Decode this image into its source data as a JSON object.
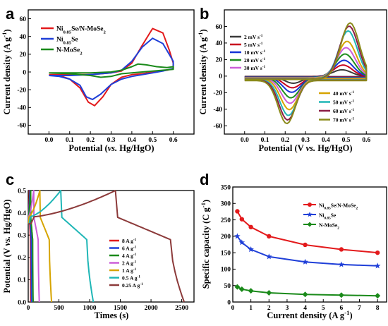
{
  "chart_data": [
    {
      "panel": "a",
      "type": "line",
      "xlabel": "Potential (vs. Hg/HgO)",
      "ylabel": "Current density (A g-1)",
      "xlim": [
        -0.1,
        0.7
      ],
      "ylim": [
        -70,
        70
      ],
      "xticks": [
        "0.0",
        "0.1",
        "0.2",
        "0.3",
        "0.4",
        "0.5",
        "0.6"
      ],
      "yticks": [
        "-60",
        "-40",
        "-20",
        "0",
        "20",
        "40",
        "60"
      ],
      "legend_position": "top-left",
      "series": [
        {
          "name": "Ni0.85Se/N-MoSe2",
          "color": "#e31a1c",
          "x": [
            0.0,
            0.1,
            0.2,
            0.3,
            0.35,
            0.4,
            0.45,
            0.5,
            0.55,
            0.58,
            0.6,
            0.6,
            0.57,
            0.5,
            0.45,
            0.4,
            0.35,
            0.3,
            0.26,
            0.22,
            0.19,
            0.15,
            0.1,
            0.05,
            0.0
          ],
          "y": [
            -3,
            -3,
            -3,
            -1,
            1,
            10,
            30,
            49,
            44,
            25,
            10,
            4,
            2,
            0,
            -2,
            -3,
            -6,
            -14,
            -28,
            -38,
            -34,
            -18,
            -8,
            -4,
            -3
          ]
        },
        {
          "name": "Ni0.85Se",
          "color": "#1f3fd8",
          "x": [
            0.0,
            0.1,
            0.2,
            0.3,
            0.35,
            0.4,
            0.45,
            0.5,
            0.55,
            0.58,
            0.6,
            0.6,
            0.55,
            0.5,
            0.45,
            0.4,
            0.35,
            0.3,
            0.25,
            0.21,
            0.18,
            0.15,
            0.1,
            0.05,
            0.0
          ],
          "y": [
            -4,
            -4,
            -3,
            -1,
            2,
            12,
            28,
            38,
            32,
            20,
            12,
            4,
            1,
            -1,
            -3,
            -5,
            -8,
            -14,
            -25,
            -31,
            -28,
            -15,
            -8,
            -5,
            -4
          ]
        },
        {
          "name": "N-MoSe2",
          "color": "#1a8a1a",
          "x": [
            0.0,
            0.1,
            0.2,
            0.3,
            0.35,
            0.4,
            0.43,
            0.47,
            0.52,
            0.57,
            0.6,
            0.6,
            0.55,
            0.5,
            0.45,
            0.4,
            0.35,
            0.3,
            0.25,
            0.2,
            0.1,
            0.0
          ],
          "y": [
            -1,
            -1,
            -1,
            0,
            2,
            6,
            9,
            8,
            6,
            5,
            6,
            3,
            2,
            1,
            0,
            -1,
            -2,
            -5,
            -6,
            -4,
            -2,
            -1
          ]
        }
      ]
    },
    {
      "panel": "b",
      "type": "line",
      "xlabel": "Potential (V vs. Hg/HgO)",
      "ylabel": "Current density (A g-1)",
      "xlim": [
        -0.1,
        0.7
      ],
      "ylim": [
        -70,
        80
      ],
      "xticks": [
        "0.0",
        "0.1",
        "0.2",
        "0.3",
        "0.4",
        "0.5",
        "0.6"
      ],
      "yticks": [
        "-60",
        "-40",
        "-20",
        "0",
        "20",
        "40",
        "60"
      ],
      "legend_position": "top-left and bottom-right",
      "series": [
        {
          "name": "2 mV s-1",
          "color": "#3a3a3a",
          "peak_anodic": 8,
          "peak_cathodic": -8
        },
        {
          "name": "5 mV s-1",
          "color": "#c8001e",
          "peak_anodic": 14,
          "peak_cathodic": -13
        },
        {
          "name": "10 mV s-1",
          "color": "#1533d6",
          "peak_anodic": 20,
          "peak_cathodic": -18
        },
        {
          "name": "20 mV s-1",
          "color": "#1e8c1e",
          "peak_anodic": 28,
          "peak_cathodic": -24
        },
        {
          "name": "30 mV s-1",
          "color": "#cc5fd8",
          "peak_anodic": 36,
          "peak_cathodic": -30
        },
        {
          "name": "40 mV s-1",
          "color": "#d6a400",
          "peak_anodic": 44,
          "peak_cathodic": -37
        },
        {
          "name": "50 mV s-1",
          "color": "#1fb6b6",
          "peak_anodic": 57,
          "peak_cathodic": -43
        },
        {
          "name": "60 mV s-1",
          "color": "#8c1e46",
          "peak_anodic": 63,
          "peak_cathodic": -48
        },
        {
          "name": "70 mV s-1",
          "color": "#8a8a1a",
          "peak_anodic": 67,
          "peak_cathodic": -52
        }
      ]
    },
    {
      "panel": "c",
      "type": "line",
      "xlabel": "Times (s)",
      "ylabel": "Potential (V vs. Hg/HgO)",
      "xlim": [
        0,
        2700
      ],
      "ylim": [
        0.0,
        0.5
      ],
      "xticks": [
        "0",
        "500",
        "1000",
        "1500",
        "2000",
        "2500"
      ],
      "yticks": [
        "0.0",
        "0.1",
        "0.2",
        "0.3",
        "0.4",
        "0.5"
      ],
      "legend_position": "right",
      "series": [
        {
          "name": "8 A g-1",
          "color": "#e31a1c",
          "t_charge": 20,
          "t_total": 40
        },
        {
          "name": "6 A g-1",
          "color": "#1f3fd8",
          "t_charge": 28,
          "t_total": 55
        },
        {
          "name": "4 A g-1",
          "color": "#1a8a1a",
          "t_charge": 40,
          "t_total": 80
        },
        {
          "name": "2 A g-1",
          "color": "#cc5fd8",
          "t_charge": 90,
          "t_total": 180
        },
        {
          "name": "1 A g-1",
          "color": "#d6a400",
          "t_charge": 190,
          "t_total": 380
        },
        {
          "name": "0.5 A g-1",
          "color": "#1fb6b6",
          "t_charge": 530,
          "t_total": 1060
        },
        {
          "name": "0.25 A g-1",
          "color": "#8c3a3a",
          "t_charge": 1420,
          "t_total": 2540
        }
      ]
    },
    {
      "panel": "d",
      "type": "line",
      "xlabel": "Current density (A g-1)",
      "ylabel": "Specific capacity (C g-1)",
      "xlim": [
        0,
        8.5
      ],
      "ylim": [
        0,
        350
      ],
      "xticks": [
        "0",
        "1",
        "2",
        "3",
        "4",
        "5",
        "6",
        "7",
        "8"
      ],
      "yticks": [
        "0",
        "50",
        "100",
        "150",
        "200",
        "250",
        "300",
        "350"
      ],
      "x": [
        0.25,
        0.5,
        1,
        2,
        4,
        6,
        8
      ],
      "legend_position": "top-right",
      "series": [
        {
          "name": "Ni0.85Se/N-MoSe2",
          "color": "#e31a1c",
          "marker": "circle",
          "values": [
            276,
            252,
            228,
            200,
            174,
            160,
            150
          ]
        },
        {
          "name": "Ni0.85Se",
          "color": "#1f3fd8",
          "marker": "star",
          "values": [
            200,
            181,
            160,
            138,
            122,
            114,
            110
          ]
        },
        {
          "name": "N-MoSe2",
          "color": "#1a8a1a",
          "marker": "diamond",
          "values": [
            46,
            39,
            34,
            28,
            23,
            21,
            19
          ]
        }
      ]
    }
  ]
}
